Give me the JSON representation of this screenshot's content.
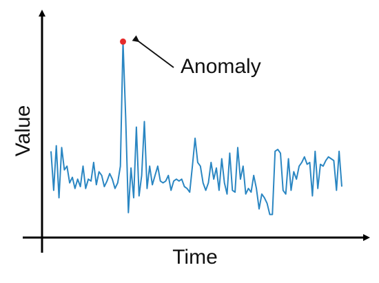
{
  "chart_data": {
    "type": "line",
    "title": "",
    "xlabel": "Time",
    "ylabel": "Value",
    "grid": false,
    "legend": "none",
    "ylim": [
      0,
      100
    ],
    "x": [
      1,
      2,
      3,
      4,
      5,
      6,
      7,
      8,
      9,
      10,
      11,
      12,
      13,
      14,
      15,
      16,
      17,
      18,
      19,
      20,
      21,
      22,
      23,
      24,
      25,
      26,
      27,
      28,
      29,
      30,
      31,
      32,
      33,
      34,
      35,
      36,
      37,
      38,
      39,
      40,
      41,
      42,
      43,
      44,
      45,
      46,
      47,
      48,
      49,
      50,
      51,
      52,
      53,
      54,
      55,
      56,
      57,
      58,
      59,
      60,
      61,
      62,
      63,
      64,
      65,
      66,
      67,
      68,
      69,
      70,
      71,
      72,
      73,
      74,
      75,
      76,
      77,
      78,
      79,
      80,
      81,
      82,
      83,
      84,
      85,
      86,
      87,
      88,
      89,
      90,
      91,
      92,
      93,
      94,
      95,
      96,
      97,
      98,
      99,
      100,
      101,
      102,
      103,
      104,
      105,
      106,
      107,
      108,
      109,
      110
    ],
    "series": [
      {
        "values": [
          39,
          18,
          42,
          14,
          41,
          29,
          31,
          22,
          25,
          19,
          24,
          20,
          31,
          19,
          24,
          23,
          33,
          21,
          28,
          26,
          20,
          23,
          27,
          24,
          19,
          22,
          31,
          98,
          57,
          6,
          30,
          14,
          52,
          15,
          26,
          55,
          19,
          31,
          21,
          26,
          31,
          23,
          22,
          23,
          26,
          18,
          23,
          24,
          23,
          24,
          20,
          19,
          17,
          31,
          46,
          33,
          31,
          22,
          18,
          22,
          33,
          24,
          30,
          18,
          35,
          22,
          16,
          38,
          18,
          17,
          41,
          24,
          31,
          16,
          19,
          17,
          26,
          19,
          8,
          16,
          14,
          11,
          5,
          5,
          39,
          40,
          38,
          18,
          16,
          35,
          18,
          28,
          24,
          31,
          33,
          36,
          32,
          33,
          15,
          39,
          19,
          32,
          31,
          34,
          36,
          35,
          34,
          18,
          39,
          20
        ]
      }
    ],
    "annotations": [
      {
        "text": "Anomaly",
        "x": 28,
        "y": 98
      }
    ],
    "colors": {
      "line": "#2a86c2",
      "anomaly_marker": "#e52b2b",
      "axis": "#000000",
      "arrow": "#111111"
    }
  }
}
